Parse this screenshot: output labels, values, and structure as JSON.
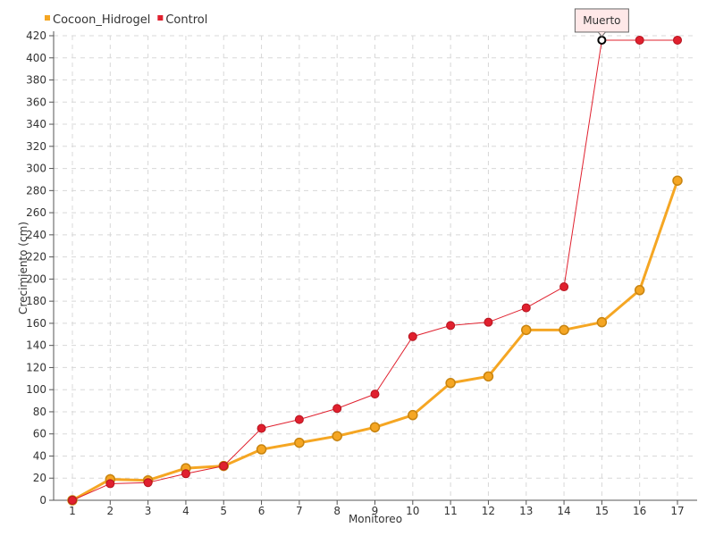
{
  "chart_data": {
    "type": "line",
    "xlabel": "Monitoreo",
    "ylabel": "Crecimiento (cm)",
    "categories": [
      "1",
      "2",
      "3",
      "4",
      "5",
      "6",
      "7",
      "8",
      "9",
      "10",
      "11",
      "12",
      "13",
      "14",
      "15",
      "16",
      "17"
    ],
    "ylim": [
      0,
      420
    ],
    "yticks": [
      0,
      20,
      40,
      60,
      80,
      100,
      120,
      140,
      160,
      180,
      200,
      220,
      240,
      260,
      280,
      300,
      320,
      340,
      360,
      380,
      400,
      420
    ],
    "grid": true,
    "legend_position": "top-left",
    "series": [
      {
        "name": "Cocoon_Hidrogel",
        "color": "#f5a623",
        "values": [
          0,
          19,
          18,
          29,
          31,
          46,
          52,
          58,
          66,
          77,
          106,
          112,
          154,
          154,
          161,
          190,
          289
        ]
      },
      {
        "name": "Control",
        "color": "#e0202e",
        "values": [
          0,
          15,
          16,
          24,
          31,
          65,
          73,
          83,
          96,
          148,
          158,
          161,
          174,
          193,
          416,
          416,
          416
        ]
      }
    ],
    "annotation": {
      "text": "Muerto",
      "series": "Control",
      "category": "15"
    }
  }
}
